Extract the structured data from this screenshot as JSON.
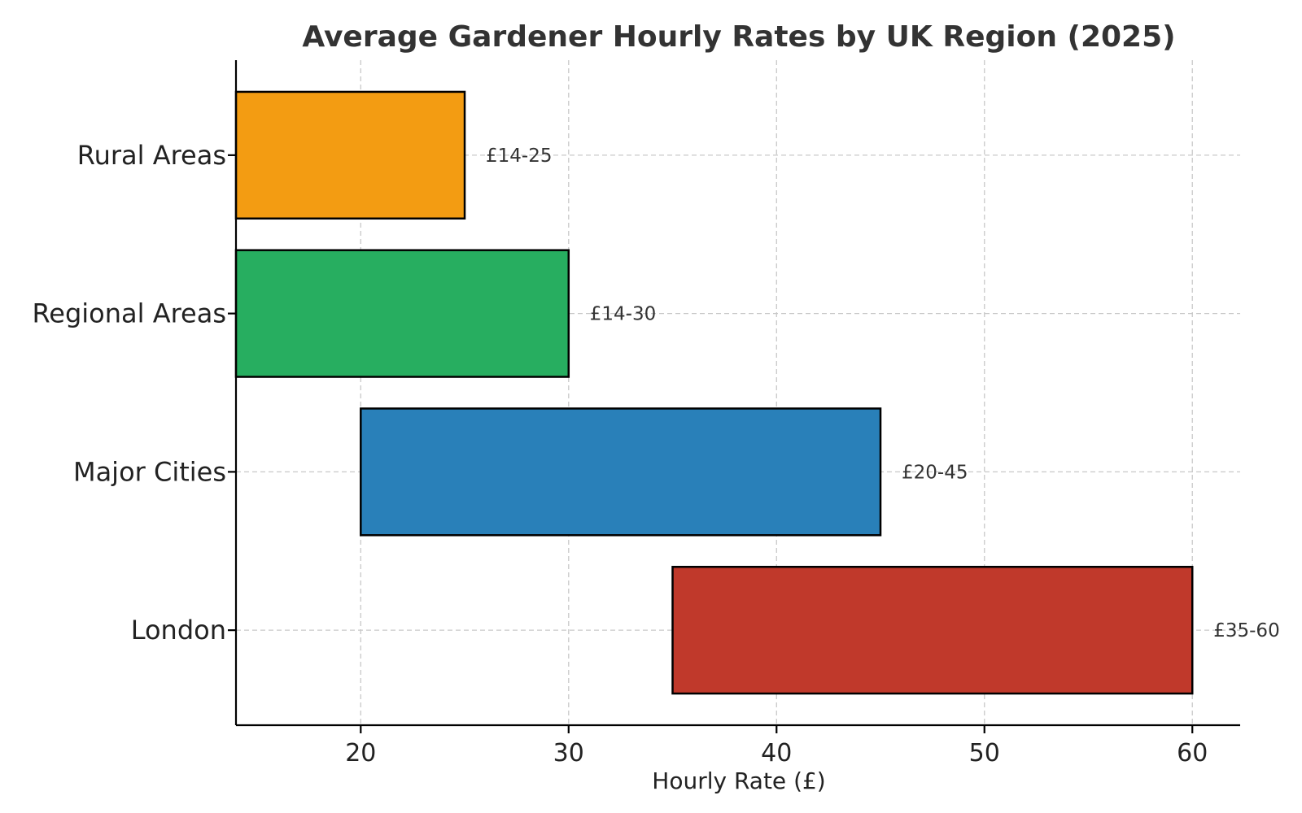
{
  "chart_data": {
    "type": "bar",
    "orientation": "horizontal",
    "title": "Average Gardener Hourly Rates by UK Region (2025)",
    "xlabel": "Hourly Rate (£)",
    "ylabel": "",
    "xlim": [
      14,
      62.3
    ],
    "xticks": [
      20,
      30,
      40,
      50,
      60
    ],
    "grid": true,
    "categories": [
      "Rural Areas",
      "Regional Areas",
      "Major Cities",
      "London"
    ],
    "series": [
      {
        "values": [
          {
            "min": 14,
            "max": 25
          },
          {
            "min": 14,
            "max": 30
          },
          {
            "min": 20,
            "max": 45
          },
          {
            "min": 35,
            "max": 60
          }
        ]
      }
    ],
    "data_labels": [
      "£14-25",
      "£14-30",
      "£20-45",
      "£35-60"
    ],
    "colors": [
      "#F39C12",
      "#27AE60",
      "#2980B9",
      "#C0392B"
    ]
  }
}
